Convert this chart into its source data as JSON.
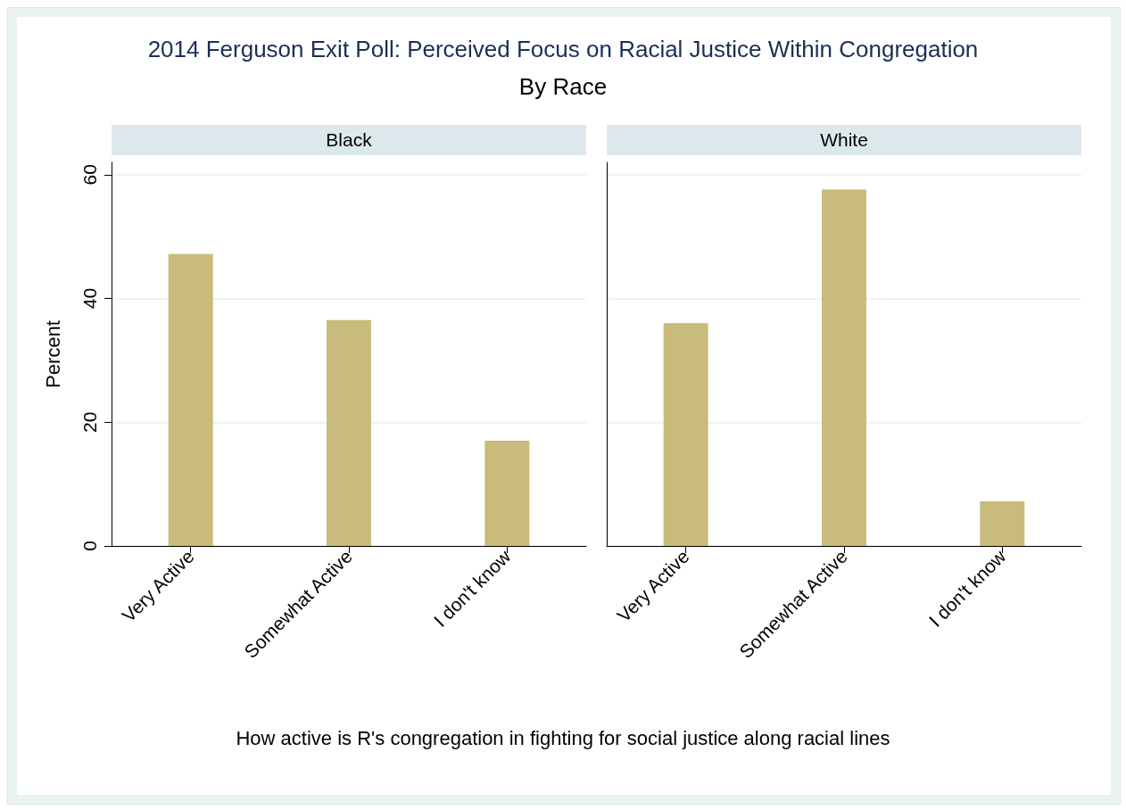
{
  "chart_data": [
    {
      "type": "bar",
      "title": "Black",
      "annotations": [
        "2014 Ferguson Exit Poll: Perceived Focus on Racial Justice Within Congregation",
        "By Race"
      ],
      "xlabel": "How active is R's congregation in fighting for social justice along racial lines",
      "ylabel": "Percent",
      "categories": [
        "Very Active",
        "Somewhat Active",
        "I don't know"
      ],
      "values": [
        47.2,
        36.5,
        17.0
      ],
      "color": "#c8bb7b",
      "ylim": [
        0,
        62
      ],
      "yticks": [
        0,
        20,
        40,
        60
      ],
      "grid": "y"
    },
    {
      "type": "bar",
      "title": "White",
      "categories": [
        "Very Active",
        "Somewhat Active",
        "I don't know"
      ],
      "values": [
        36.0,
        57.6,
        7.2
      ],
      "color": "#c8bb7b",
      "ylim": [
        0,
        62
      ],
      "yticks": [
        0,
        20,
        40,
        60
      ],
      "grid": "y",
      "tick_labels": "x"
    }
  ]
}
